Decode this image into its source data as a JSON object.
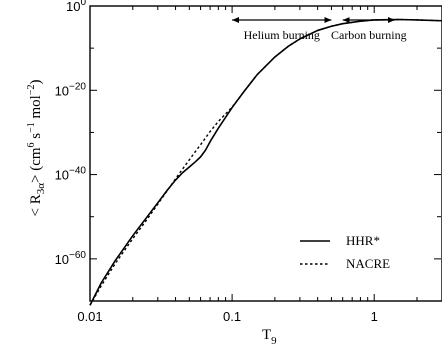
{
  "chart_data": {
    "type": "line",
    "x_scale": "log",
    "y_scale": "log",
    "xlim": [
      0.01,
      3
    ],
    "ylim": [
      1e-70,
      1
    ],
    "grid": false,
    "legend_position": "lower-right",
    "xlabel": {
      "main": "T",
      "sub": "9"
    },
    "ylabel": {
      "open": "< R",
      "sub": "3α",
      "close": "> (cm",
      "sup1": "6",
      "mid1": " s",
      "sup2": "−1",
      "mid2": " mol",
      "sup3": "−2",
      "end": ")"
    },
    "x_ticks": [
      {
        "value": 0.01,
        "label": "0.01"
      },
      {
        "value": 0.1,
        "label": "0.1"
      },
      {
        "value": 1,
        "label": "1"
      }
    ],
    "y_ticks": [
      {
        "value": 1,
        "base": "10",
        "exp": "0"
      },
      {
        "value": 1e-20,
        "base": "10",
        "exp": "−20"
      },
      {
        "value": 1e-40,
        "base": "10",
        "exp": "−40"
      },
      {
        "value": 1e-60,
        "base": "10",
        "exp": "−60"
      }
    ],
    "annotations": [
      {
        "label": "Helium burning",
        "x_range": [
          0.1,
          0.5
        ]
      },
      {
        "label": "Carbon burning",
        "x_range": [
          0.6,
          1.4
        ]
      }
    ],
    "series": [
      {
        "name": "HHR*",
        "style": "solid",
        "color": "#000000",
        "x": [
          0.01,
          0.012,
          0.015,
          0.02,
          0.025,
          0.03,
          0.035,
          0.04,
          0.045,
          0.05,
          0.055,
          0.06,
          0.065,
          0.07,
          0.08,
          0.09,
          0.1,
          0.12,
          0.15,
          0.2,
          0.25,
          0.3,
          0.4,
          0.5,
          0.6,
          0.8,
          1.0,
          1.5,
          2.0,
          3.0
        ],
        "log10_y": [
          -71,
          -65.7,
          -60.5,
          -54.5,
          -50.2,
          -46.7,
          -43.7,
          -41.3,
          -39.5,
          -38.2,
          -37.0,
          -35.8,
          -34.2,
          -32.2,
          -29.0,
          -26.4,
          -24.1,
          -20.5,
          -16.3,
          -12.1,
          -9.5,
          -7.8,
          -5.8,
          -4.8,
          -4.2,
          -3.6,
          -3.3,
          -3.2,
          -3.3,
          -3.5
        ]
      },
      {
        "name": "NACRE",
        "style": "dashed",
        "color": "#000000",
        "x": [
          0.01,
          0.012,
          0.015,
          0.02,
          0.025,
          0.03,
          0.035,
          0.04,
          0.045,
          0.05,
          0.055,
          0.06,
          0.065,
          0.07,
          0.08,
          0.09,
          0.1,
          0.12,
          0.15,
          0.2,
          0.25,
          0.3,
          0.4,
          0.5,
          0.6,
          0.8,
          1.0,
          1.5,
          2.0,
          3.0
        ],
        "log10_y": [
          -71,
          -66.4,
          -61.2,
          -55.2,
          -50.8,
          -47.0,
          -43.8,
          -41.0,
          -38.6,
          -36.5,
          -34.6,
          -32.9,
          -31.3,
          -29.8,
          -27.4,
          -25.6,
          -24.0,
          -20.5,
          -16.3,
          -12.1,
          -9.5,
          -7.8,
          -5.8,
          -4.8,
          -4.2,
          -3.6,
          -3.3,
          -3.2,
          -3.3,
          -3.5
        ]
      }
    ]
  }
}
